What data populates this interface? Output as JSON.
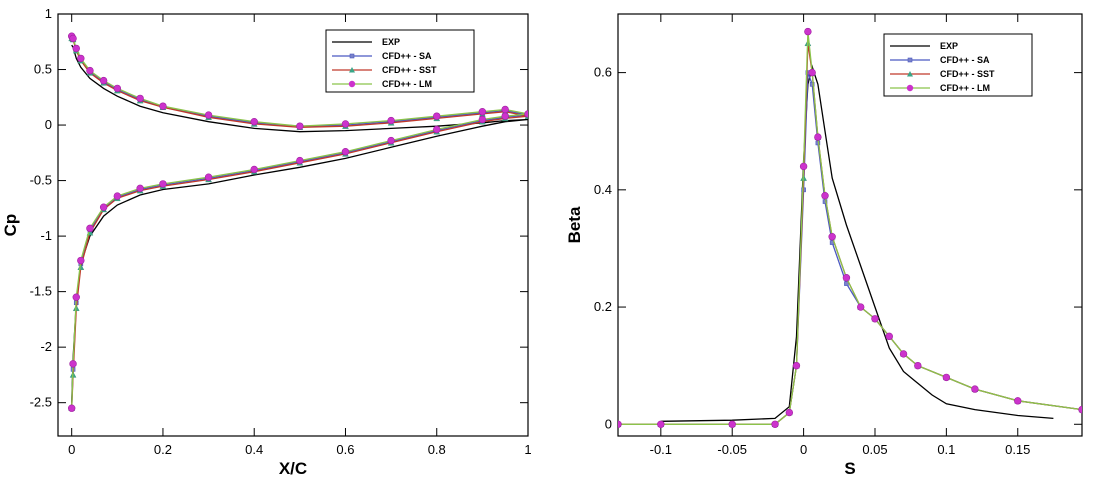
{
  "chart_data": [
    {
      "type": "line",
      "xlabel": "X/C",
      "ylabel": "Cp",
      "xlim": [
        -0.03,
        1.0
      ],
      "ylim": [
        -2.8,
        1.0
      ],
      "y_inverted": false,
      "grid": false,
      "legend_position": "top-right",
      "xticks": [
        "0",
        "0.2",
        "0.4",
        "0.6",
        "0.8",
        "1"
      ],
      "xtick_values": [
        0,
        0.2,
        0.4,
        0.6,
        0.8,
        1
      ],
      "yticks": [
        "1",
        "0.5",
        "0",
        "-0.5",
        "-1",
        "-1.5",
        "-2",
        "-2.5"
      ],
      "ytick_values": [
        1,
        0.5,
        0,
        -0.5,
        -1,
        -1.5,
        -2,
        -2.5
      ],
      "series": [
        {
          "name": "EXP",
          "color": "#000000",
          "marker": "none",
          "x": [
            0.0,
            0.003,
            0.01,
            0.02,
            0.04,
            0.07,
            0.1,
            0.15,
            0.2,
            0.3,
            0.4,
            0.5,
            0.6,
            0.7,
            0.8,
            0.9,
            0.95,
            1.0,
            0.95,
            0.9,
            0.8,
            0.7,
            0.6,
            0.5,
            0.4,
            0.3,
            0.2,
            0.15,
            0.1,
            0.07,
            0.04,
            0.02,
            0.01,
            0.003,
            0.0
          ],
          "y": [
            0.72,
            0.7,
            0.6,
            0.52,
            0.42,
            0.33,
            0.26,
            0.17,
            0.11,
            0.03,
            -0.03,
            -0.06,
            -0.05,
            -0.03,
            -0.01,
            0.02,
            0.04,
            0.05,
            0.03,
            -0.01,
            -0.1,
            -0.2,
            -0.3,
            -0.38,
            -0.45,
            -0.53,
            -0.58,
            -0.63,
            -0.72,
            -0.82,
            -1.0,
            -1.25,
            -1.6,
            -2.1,
            -2.5
          ]
        },
        {
          "name": "CFD++ - SA",
          "color": "#4b59c2",
          "marker": "x",
          "x": [
            0.0,
            0.003,
            0.01,
            0.02,
            0.04,
            0.07,
            0.1,
            0.15,
            0.2,
            0.3,
            0.4,
            0.5,
            0.6,
            0.7,
            0.8,
            0.9,
            0.95,
            1.0,
            0.95,
            0.9,
            0.8,
            0.7,
            0.6,
            0.5,
            0.4,
            0.3,
            0.2,
            0.15,
            0.1,
            0.07,
            0.04,
            0.02,
            0.01,
            0.003,
            0.0
          ],
          "y": [
            0.78,
            0.77,
            0.68,
            0.59,
            0.48,
            0.39,
            0.32,
            0.23,
            0.16,
            0.08,
            0.02,
            -0.01,
            0.0,
            0.03,
            0.07,
            0.11,
            0.13,
            0.09,
            0.07,
            0.04,
            -0.05,
            -0.15,
            -0.25,
            -0.33,
            -0.41,
            -0.48,
            -0.54,
            -0.58,
            -0.65,
            -0.75,
            -0.95,
            -1.25,
            -1.6,
            -2.2,
            -2.55
          ]
        },
        {
          "name": "CFD++ - SST",
          "color": "#c0392b",
          "marker": "triangle",
          "x": [
            0.0,
            0.003,
            0.01,
            0.02,
            0.04,
            0.07,
            0.1,
            0.15,
            0.2,
            0.3,
            0.4,
            0.5,
            0.6,
            0.7,
            0.8,
            0.9,
            0.95,
            1.0,
            0.95,
            0.9,
            0.8,
            0.7,
            0.6,
            0.5,
            0.4,
            0.3,
            0.2,
            0.15,
            0.1,
            0.07,
            0.04,
            0.02,
            0.01,
            0.003,
            0.0
          ],
          "y": [
            0.78,
            0.77,
            0.67,
            0.58,
            0.47,
            0.38,
            0.31,
            0.22,
            0.16,
            0.07,
            0.01,
            -0.02,
            -0.01,
            0.02,
            0.06,
            0.1,
            0.12,
            0.08,
            0.06,
            0.03,
            -0.06,
            -0.16,
            -0.26,
            -0.34,
            -0.42,
            -0.49,
            -0.55,
            -0.59,
            -0.66,
            -0.76,
            -0.97,
            -1.28,
            -1.65,
            -2.25,
            -2.55
          ]
        },
        {
          "name": "CFD++ - LM",
          "color": "#8bc34a",
          "marker": "circle",
          "x": [
            0.0,
            0.003,
            0.01,
            0.02,
            0.04,
            0.07,
            0.1,
            0.15,
            0.2,
            0.3,
            0.4,
            0.5,
            0.6,
            0.7,
            0.8,
            0.9,
            0.95,
            1.0,
            0.95,
            0.9,
            0.8,
            0.7,
            0.6,
            0.5,
            0.4,
            0.3,
            0.2,
            0.15,
            0.1,
            0.07,
            0.04,
            0.02,
            0.01,
            0.003,
            0.0
          ],
          "y": [
            0.8,
            0.78,
            0.69,
            0.6,
            0.49,
            0.4,
            0.33,
            0.24,
            0.17,
            0.09,
            0.03,
            -0.01,
            0.01,
            0.04,
            0.08,
            0.12,
            0.14,
            0.1,
            0.08,
            0.05,
            -0.04,
            -0.14,
            -0.24,
            -0.32,
            -0.4,
            -0.47,
            -0.53,
            -0.57,
            -0.64,
            -0.74,
            -0.93,
            -1.22,
            -1.55,
            -2.15,
            -2.55
          ]
        }
      ],
      "marker_series": {
        "name": "CFD++ - LM",
        "color": "#cc33cc"
      }
    },
    {
      "type": "line",
      "xlabel": "S",
      "ylabel": "Beta",
      "xlim": [
        -0.13,
        0.195
      ],
      "ylim": [
        -0.02,
        0.7
      ],
      "grid": false,
      "legend_position": "top-right",
      "xticks": [
        "-0.1",
        "-0.05",
        "0",
        "0.05",
        "0.1",
        "0.15"
      ],
      "xtick_values": [
        -0.1,
        -0.05,
        0,
        0.05,
        0.1,
        0.15
      ],
      "yticks": [
        "0",
        "0.2",
        "0.4",
        "0.6"
      ],
      "ytick_values": [
        0,
        0.2,
        0.4,
        0.6
      ],
      "series": [
        {
          "name": "EXP",
          "color": "#000000",
          "marker": "none",
          "x": [
            -0.1,
            -0.05,
            -0.02,
            -0.01,
            -0.005,
            0.0,
            0.003,
            0.006,
            0.01,
            0.015,
            0.02,
            0.03,
            0.04,
            0.05,
            0.06,
            0.07,
            0.08,
            0.09,
            0.1,
            0.12,
            0.15,
            0.175
          ],
          "y": [
            0.005,
            0.007,
            0.01,
            0.03,
            0.15,
            0.45,
            0.58,
            0.61,
            0.58,
            0.5,
            0.42,
            0.34,
            0.27,
            0.2,
            0.13,
            0.09,
            0.07,
            0.05,
            0.035,
            0.025,
            0.015,
            0.01
          ]
        },
        {
          "name": "CFD++ - SA",
          "color": "#4b59c2",
          "marker": "x",
          "x": [
            -0.13,
            -0.1,
            -0.05,
            -0.02,
            -0.01,
            -0.005,
            0.0,
            0.003,
            0.006,
            0.01,
            0.015,
            0.02,
            0.03,
            0.04,
            0.05,
            0.06,
            0.07,
            0.08,
            0.1,
            0.12,
            0.15,
            0.195
          ],
          "y": [
            0.0,
            0.0,
            0.0,
            0.0,
            0.02,
            0.1,
            0.4,
            0.6,
            0.58,
            0.48,
            0.38,
            0.31,
            0.24,
            0.2,
            0.18,
            0.15,
            0.12,
            0.1,
            0.08,
            0.06,
            0.04,
            0.025
          ]
        },
        {
          "name": "CFD++ - SST",
          "color": "#c0392b",
          "marker": "triangle",
          "x": [
            -0.13,
            -0.1,
            -0.05,
            -0.02,
            -0.01,
            -0.005,
            0.0,
            0.003,
            0.006,
            0.01,
            0.015,
            0.02,
            0.03,
            0.04,
            0.05,
            0.06,
            0.07,
            0.08,
            0.1,
            0.12,
            0.15,
            0.195
          ],
          "y": [
            0.0,
            0.0,
            0.0,
            0.0,
            0.02,
            0.1,
            0.42,
            0.65,
            0.6,
            0.49,
            0.39,
            0.32,
            0.25,
            0.2,
            0.18,
            0.15,
            0.12,
            0.1,
            0.08,
            0.06,
            0.04,
            0.025
          ]
        },
        {
          "name": "CFD++ - LM",
          "color": "#8bc34a",
          "marker": "circle",
          "x": [
            -0.13,
            -0.1,
            -0.05,
            -0.02,
            -0.01,
            -0.005,
            0.0,
            0.003,
            0.006,
            0.01,
            0.015,
            0.02,
            0.03,
            0.04,
            0.05,
            0.06,
            0.07,
            0.08,
            0.1,
            0.12,
            0.15,
            0.195
          ],
          "y": [
            0.0,
            0.0,
            0.0,
            0.0,
            0.02,
            0.1,
            0.44,
            0.67,
            0.6,
            0.49,
            0.39,
            0.32,
            0.25,
            0.2,
            0.18,
            0.15,
            0.12,
            0.1,
            0.08,
            0.06,
            0.04,
            0.025
          ]
        }
      ],
      "marker_series": {
        "name": "CFD++ - LM",
        "color": "#cc33cc"
      }
    }
  ]
}
